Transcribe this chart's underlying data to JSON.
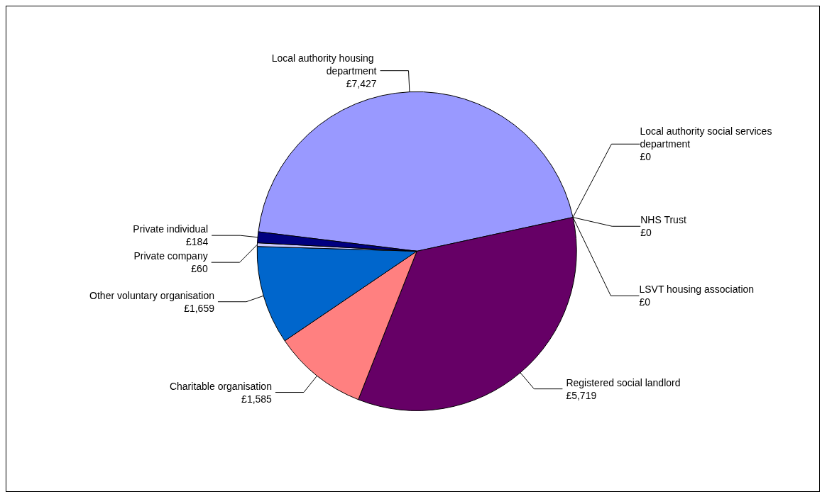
{
  "chart_data": {
    "type": "pie",
    "categories": [
      "Local authority housing department",
      "Local authority social services department",
      "NHS Trust",
      "LSVT housing association",
      "Registered social landlord",
      "Charitable organisation",
      "Other voluntary organisation",
      "Private company",
      "Private individual"
    ],
    "values": [
      7427,
      0,
      0,
      0,
      5719,
      1585,
      1659,
      60,
      184
    ],
    "value_labels": [
      "£7,427",
      "£0",
      "£0",
      "£0",
      "£5,719",
      "£1,585",
      "£1,659",
      "£60",
      "£184"
    ],
    "colors": [
      "#9999ff",
      "#993366",
      "#ffffcc",
      "#ccffff",
      "#660066",
      "#ff8080",
      "#0066cc",
      "#ccccff",
      "#000080"
    ]
  }
}
